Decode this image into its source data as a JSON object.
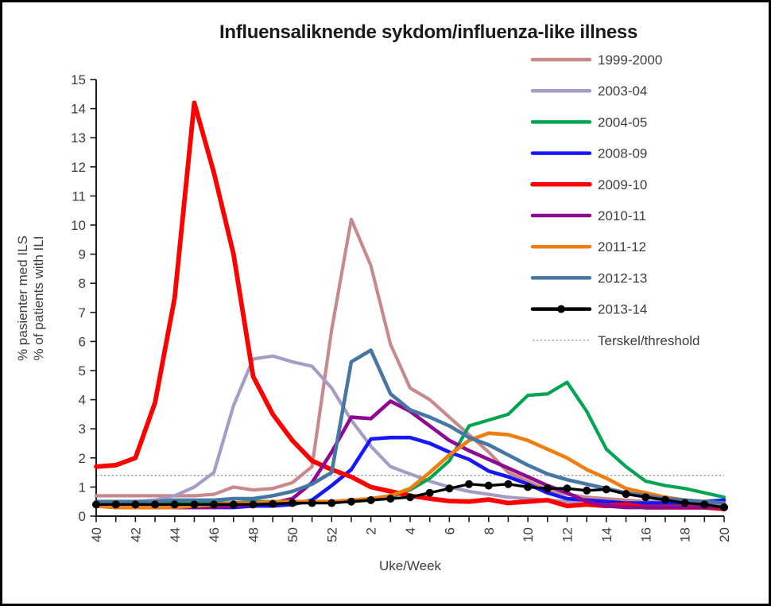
{
  "chart_data": {
    "type": "line",
    "title": "Influensaliknende sykdom/influenza-like illness",
    "xlabel": "Uke/Week",
    "ylabel_lines": [
      "% pasienter med ILS",
      "% of patients with ILI"
    ],
    "x_categories": [
      "40",
      "41",
      "42",
      "43",
      "44",
      "45",
      "46",
      "47",
      "48",
      "49",
      "50",
      "51",
      "52",
      "1",
      "2",
      "3",
      "4",
      "5",
      "6",
      "7",
      "8",
      "9",
      "10",
      "11",
      "12",
      "13",
      "14",
      "15",
      "16",
      "17",
      "18",
      "19",
      "20"
    ],
    "x_labels_shown": [
      "40",
      "42",
      "44",
      "46",
      "48",
      "50",
      "52",
      "2",
      "4",
      "6",
      "8",
      "10",
      "12",
      "14",
      "16",
      "18",
      "20"
    ],
    "ylim": [
      0,
      15
    ],
    "y_tick_step": 1,
    "grid": "off",
    "legend_position": "upper-right",
    "axis_color": "#1a1a1a",
    "tick_label_color": "#3d3d3d",
    "threshold": {
      "label": "Terskel/threshold",
      "value": 1.4,
      "color": "#a3a3a3",
      "style": "dashed"
    },
    "series": [
      {
        "name": "1999-2000",
        "color": "#c8898c",
        "width": 4.2,
        "marker": "none",
        "values": [
          0.7,
          0.7,
          0.7,
          0.7,
          0.7,
          0.7,
          0.75,
          1.0,
          0.9,
          0.95,
          1.15,
          1.7,
          6.4,
          10.2,
          8.6,
          5.9,
          4.4,
          4.0,
          3.4,
          2.8,
          2.2,
          1.5,
          1.2,
          0.9,
          0.75,
          0.65,
          0.6,
          0.55,
          0.5,
          0.5,
          0.5,
          0.45,
          0.45
        ]
      },
      {
        "name": "2003-04",
        "color": "#a79bc5",
        "width": 4.2,
        "marker": "none",
        "values": [
          0.5,
          0.5,
          0.5,
          0.55,
          0.7,
          1.0,
          1.5,
          3.8,
          5.4,
          5.5,
          5.3,
          5.15,
          4.4,
          3.3,
          2.4,
          1.7,
          1.45,
          1.2,
          1.0,
          0.85,
          0.75,
          0.65,
          0.6,
          0.55,
          0.5,
          0.5,
          0.45,
          0.45,
          0.4,
          0.4,
          0.4,
          0.4,
          0.4
        ]
      },
      {
        "name": "2004-05",
        "color": "#00a551",
        "width": 4.2,
        "marker": "none",
        "values": [
          0.45,
          0.45,
          0.45,
          0.45,
          0.45,
          0.45,
          0.45,
          0.45,
          0.5,
          0.5,
          0.5,
          0.5,
          0.5,
          0.5,
          0.55,
          0.65,
          0.9,
          1.3,
          1.9,
          3.1,
          3.3,
          3.5,
          4.15,
          4.2,
          4.6,
          3.6,
          2.3,
          1.7,
          1.2,
          1.05,
          0.95,
          0.8,
          0.65
        ]
      },
      {
        "name": "2008-09",
        "color": "#1616ff",
        "width": 4.6,
        "marker": "none",
        "values": [
          0.35,
          0.35,
          0.3,
          0.3,
          0.3,
          0.3,
          0.3,
          0.3,
          0.35,
          0.35,
          0.4,
          0.55,
          1.05,
          1.6,
          2.65,
          2.7,
          2.7,
          2.5,
          2.2,
          1.95,
          1.55,
          1.35,
          1.1,
          0.8,
          0.6,
          0.55,
          0.5,
          0.45,
          0.45,
          0.45,
          0.45,
          0.5,
          0.55
        ]
      },
      {
        "name": "2009-10",
        "color": "#fe0000",
        "width": 5.8,
        "marker": "none",
        "values": [
          1.7,
          1.75,
          2.0,
          3.9,
          7.5,
          14.2,
          11.8,
          9.0,
          4.8,
          3.5,
          2.6,
          1.9,
          1.6,
          1.35,
          1.0,
          0.85,
          0.7,
          0.6,
          0.52,
          0.5,
          0.57,
          0.45,
          0.5,
          0.55,
          0.35,
          0.4,
          0.35,
          0.4,
          0.3,
          0.3,
          0.3,
          0.3,
          0.25
        ]
      },
      {
        "name": "2010-11",
        "color": "#8e0b91",
        "width": 4.6,
        "marker": "none",
        "values": [
          0.35,
          0.3,
          0.3,
          0.3,
          0.3,
          0.3,
          0.3,
          0.35,
          0.4,
          0.45,
          0.6,
          1.15,
          2.2,
          3.4,
          3.35,
          3.95,
          3.6,
          3.1,
          2.6,
          2.25,
          1.95,
          1.65,
          1.35,
          1.05,
          0.8,
          0.5,
          0.35,
          0.3,
          0.3,
          0.3,
          0.3,
          0.3,
          0.3
        ]
      },
      {
        "name": "2011-12",
        "color": "#ef7d0f",
        "width": 4.6,
        "marker": "none",
        "values": [
          0.35,
          0.3,
          0.3,
          0.3,
          0.3,
          0.35,
          0.4,
          0.45,
          0.45,
          0.5,
          0.5,
          0.5,
          0.5,
          0.55,
          0.6,
          0.7,
          0.95,
          1.5,
          2.1,
          2.6,
          2.85,
          2.8,
          2.6,
          2.3,
          2.0,
          1.6,
          1.3,
          0.95,
          0.8,
          0.65,
          0.55,
          0.5,
          0.45
        ]
      },
      {
        "name": "2012-13",
        "color": "#4677a4",
        "width": 4.6,
        "marker": "none",
        "values": [
          0.5,
          0.5,
          0.5,
          0.5,
          0.55,
          0.55,
          0.55,
          0.6,
          0.6,
          0.7,
          0.85,
          1.1,
          1.5,
          5.3,
          5.7,
          4.2,
          3.65,
          3.4,
          3.1,
          2.7,
          2.45,
          2.1,
          1.75,
          1.45,
          1.25,
          1.1,
          0.95,
          0.8,
          0.7,
          0.6,
          0.55,
          0.5,
          0.45
        ]
      },
      {
        "name": "2013-14",
        "color": "#000000",
        "width": 3.4,
        "marker": "circle",
        "values": [
          0.4,
          0.4,
          0.4,
          0.4,
          0.4,
          0.4,
          0.4,
          0.4,
          0.4,
          0.42,
          0.45,
          0.45,
          0.45,
          0.5,
          0.55,
          0.6,
          0.65,
          0.8,
          0.95,
          1.1,
          1.05,
          1.1,
          1.0,
          0.95,
          0.95,
          0.88,
          0.92,
          0.76,
          0.65,
          0.56,
          0.45,
          0.4,
          0.3
        ]
      }
    ]
  }
}
